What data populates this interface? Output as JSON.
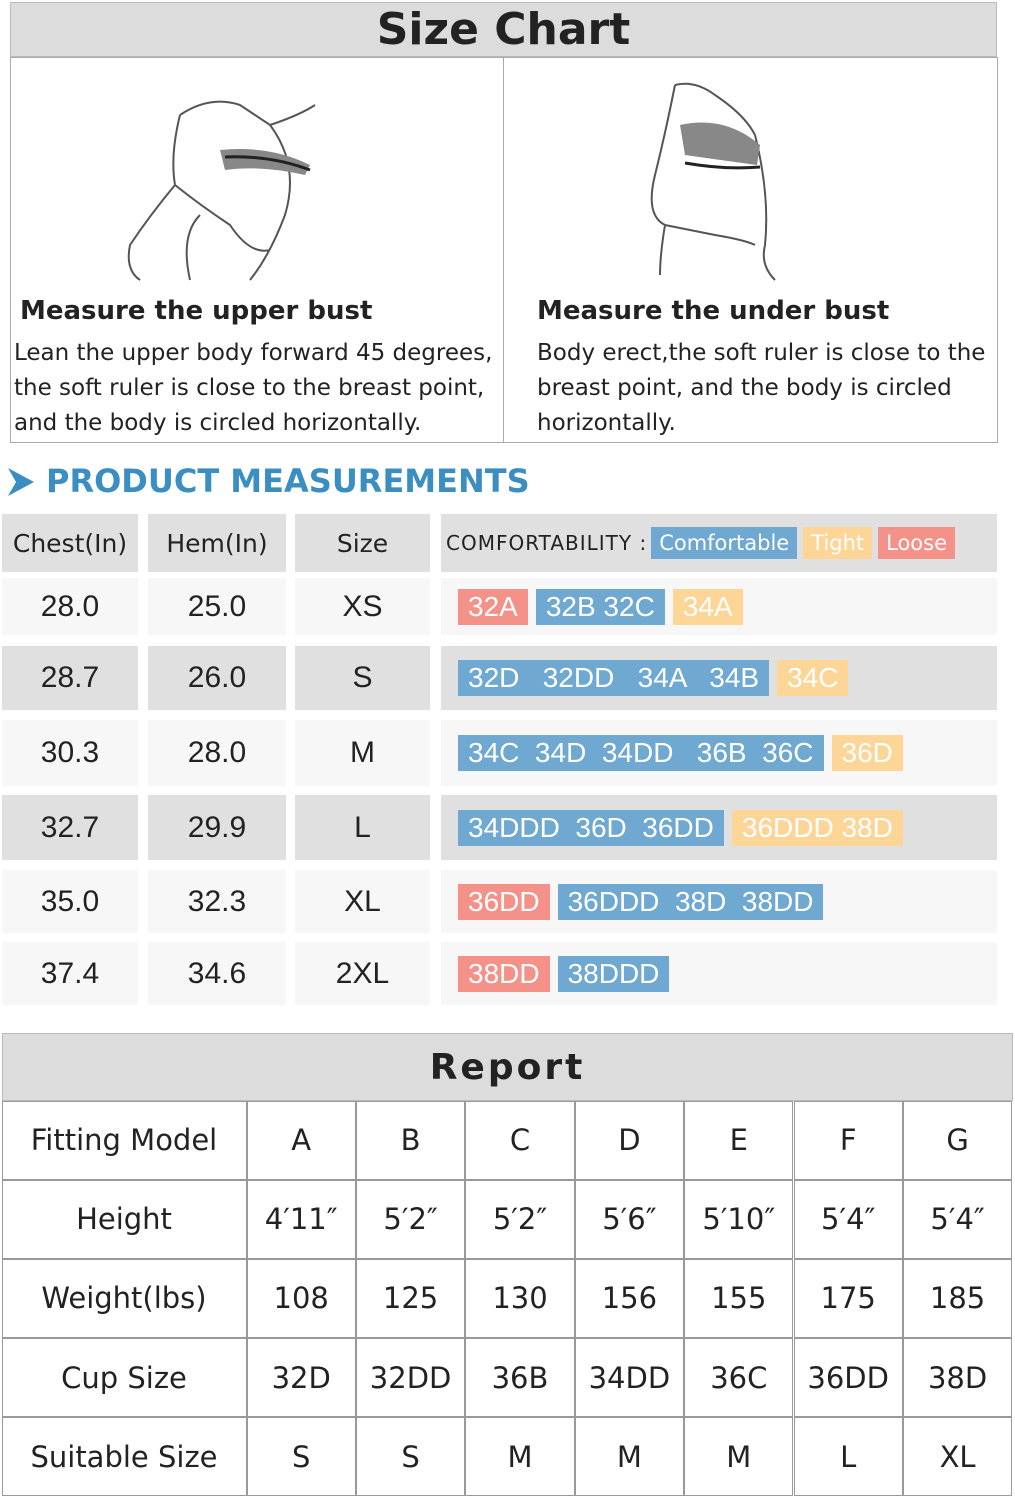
{
  "title": "Size Chart",
  "measures": [
    {
      "heading": "Measure the upper bust",
      "lines": [
        "Lean the upper body forward 45 degrees,",
        "the soft ruler is close to the breast point,",
        "and the body is circled horizontally."
      ]
    },
    {
      "heading": "Measure the under bust",
      "lines": [
        "Body erect,the soft ruler is close to the",
        "breast  point, and the body is circled",
        "horizontally."
      ]
    }
  ],
  "section_title": "PRODUCT MEASUREMENTS",
  "size_table": {
    "header": [
      "Chest(In)",
      "Hem(In)",
      "Size",
      "COMFORTABILITY :"
    ],
    "legend": [
      {
        "text": "Comfortable",
        "color": "#6fa8d0"
      },
      {
        "text": "Tight",
        "color": "#fcd597"
      },
      {
        "text": "Loose",
        "color": "#f4928a"
      }
    ],
    "rows": [
      {
        "chest": "28.0",
        "hem": "25.0",
        "size": "XS",
        "chips": [
          {
            "text": "32A",
            "color": "#f4928a"
          },
          {
            "text": "32B 32C",
            "color": "#6fa8d0"
          },
          {
            "text": "34A",
            "color": "#fcd597"
          }
        ]
      },
      {
        "chest": "28.7",
        "hem": "26.0",
        "size": "S",
        "chips": [
          {
            "text": "32D   32DD   34A   34B",
            "color": "#6fa8d0"
          },
          {
            "text": "34C",
            "color": "#fcd597"
          }
        ]
      },
      {
        "chest": "30.3",
        "hem": "28.0",
        "size": "M",
        "chips": [
          {
            "text": "34C  34D  34DD   36B  36C",
            "color": "#6fa8d0"
          },
          {
            "text": "36D",
            "color": "#fcd597"
          }
        ]
      },
      {
        "chest": "32.7",
        "hem": "29.9",
        "size": "L",
        "chips": [
          {
            "text": "34DDD  36D  36DD",
            "color": "#6fa8d0"
          },
          {
            "text": "36DDD 38D",
            "color": "#fcd597"
          }
        ]
      },
      {
        "chest": "35.0",
        "hem": "32.3",
        "size": "XL",
        "chips": [
          {
            "text": "36DD",
            "color": "#f4928a"
          },
          {
            "text": "36DDD  38D  38DD",
            "color": "#6fa8d0"
          }
        ]
      },
      {
        "chest": "37.4",
        "hem": "34.6",
        "size": "2XL",
        "chips": [
          {
            "text": "38DD",
            "color": "#f4928a"
          },
          {
            "text": "38DDD",
            "color": "#6fa8d0"
          }
        ]
      }
    ]
  },
  "report": {
    "title": "Report",
    "rows": [
      [
        "Fitting Model",
        "A",
        "B",
        "C",
        "D",
        "E",
        "F",
        "G"
      ],
      [
        "Height",
        "4′11″",
        "5′2″",
        "5′2″",
        "5′6″",
        "5′10″",
        "5′4″",
        "5′4″"
      ],
      [
        "Weight(lbs)",
        "108",
        "125",
        "130",
        "156",
        "155",
        "175",
        "185"
      ],
      [
        "Cup Size",
        "32D",
        "32DD",
        "36B",
        "34DD",
        "36C",
        "36DD",
        "38D"
      ],
      [
        "Suitable Size",
        "S",
        "S",
        "M",
        "M",
        "M",
        "L",
        "XL"
      ]
    ]
  }
}
